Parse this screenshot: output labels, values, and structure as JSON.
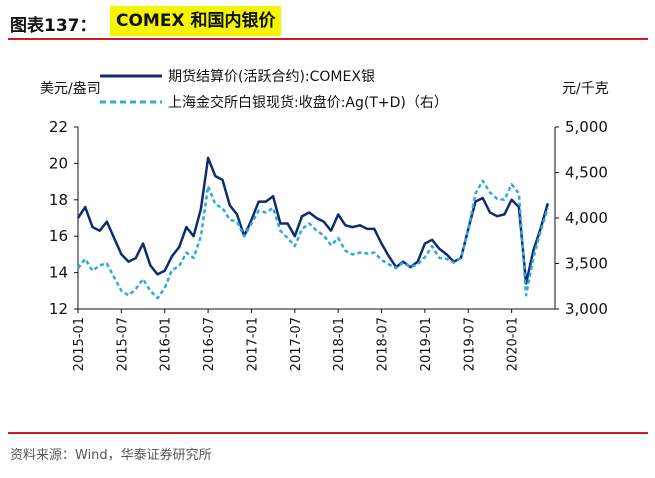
{
  "header": {
    "figure_label": "图表137：",
    "title": "COMEX 和国内银价"
  },
  "source": "资料来源：Wind，华泰证券研究所",
  "colors": {
    "series1": "#0d2d6e",
    "series2": "#2ea8e0",
    "rule": "#c81e1e",
    "highlight": "#f5f500"
  },
  "chart_data": {
    "type": "line",
    "left_unit": "美元/盎司",
    "right_unit": "元/千克",
    "yleft": {
      "lim": [
        12,
        22
      ],
      "ticks": [
        "12",
        "14",
        "16",
        "18",
        "20",
        "22"
      ]
    },
    "yright": {
      "lim": [
        3000,
        5000
      ],
      "ticks": [
        "3,000",
        "3,500",
        "4,000",
        "4,500",
        "5,000"
      ]
    },
    "xlim": [
      "2015-01",
      "2020-07"
    ],
    "xticks": [
      "2015-01",
      "2015-07",
      "2016-01",
      "2016-07",
      "2017-01",
      "2017-07",
      "2018-01",
      "2018-07",
      "2019-01",
      "2019-07",
      "2020-01"
    ],
    "series": [
      {
        "name": "期货结算价(活跃合约):COMEX银",
        "axis": "left",
        "style": "solid",
        "x": [
          "2015-01",
          "2015-02",
          "2015-03",
          "2015-04",
          "2015-05",
          "2015-06",
          "2015-07",
          "2015-08",
          "2015-09",
          "2015-10",
          "2015-11",
          "2015-12",
          "2016-01",
          "2016-02",
          "2016-03",
          "2016-04",
          "2016-05",
          "2016-06",
          "2016-07",
          "2016-08",
          "2016-09",
          "2016-10",
          "2016-11",
          "2016-12",
          "2017-01",
          "2017-02",
          "2017-03",
          "2017-04",
          "2017-05",
          "2017-06",
          "2017-07",
          "2017-08",
          "2017-09",
          "2017-10",
          "2017-11",
          "2017-12",
          "2018-01",
          "2018-02",
          "2018-03",
          "2018-04",
          "2018-05",
          "2018-06",
          "2018-07",
          "2018-08",
          "2018-09",
          "2018-10",
          "2018-11",
          "2018-12",
          "2019-01",
          "2019-02",
          "2019-03",
          "2019-04",
          "2019-05",
          "2019-06",
          "2019-07",
          "2019-08",
          "2019-09",
          "2019-10",
          "2019-11",
          "2019-12",
          "2020-01",
          "2020-02",
          "2020-03",
          "2020-04",
          "2020-05",
          "2020-06"
        ],
        "values": [
          17.0,
          17.6,
          16.5,
          16.3,
          16.8,
          15.9,
          15.0,
          14.6,
          14.8,
          15.6,
          14.4,
          13.9,
          14.1,
          14.9,
          15.4,
          16.5,
          16.0,
          17.5,
          20.3,
          19.3,
          19.1,
          17.7,
          17.2,
          16.0,
          16.9,
          17.9,
          17.9,
          18.2,
          16.7,
          16.7,
          16.0,
          17.1,
          17.3,
          17.0,
          16.8,
          16.3,
          17.2,
          16.6,
          16.5,
          16.6,
          16.4,
          16.4,
          15.6,
          14.9,
          14.3,
          14.6,
          14.3,
          14.6,
          15.6,
          15.8,
          15.3,
          15.0,
          14.6,
          14.8,
          16.4,
          17.9,
          18.1,
          17.3,
          17.1,
          17.2,
          18.0,
          17.6,
          13.4,
          15.2,
          16.4,
          17.8
        ]
      },
      {
        "name": "上海金交所白银现货:收盘价:Ag(T+D)（右）",
        "axis": "right",
        "style": "dashed",
        "x": [
          "2015-01",
          "2015-02",
          "2015-03",
          "2015-04",
          "2015-05",
          "2015-06",
          "2015-07",
          "2015-08",
          "2015-09",
          "2015-10",
          "2015-11",
          "2015-12",
          "2016-01",
          "2016-02",
          "2016-03",
          "2016-04",
          "2016-05",
          "2016-06",
          "2016-07",
          "2016-08",
          "2016-09",
          "2016-10",
          "2016-11",
          "2016-12",
          "2017-01",
          "2017-02",
          "2017-03",
          "2017-04",
          "2017-05",
          "2017-06",
          "2017-07",
          "2017-08",
          "2017-09",
          "2017-10",
          "2017-11",
          "2017-12",
          "2018-01",
          "2018-02",
          "2018-03",
          "2018-04",
          "2018-05",
          "2018-06",
          "2018-07",
          "2018-08",
          "2018-09",
          "2018-10",
          "2018-11",
          "2018-12",
          "2019-01",
          "2019-02",
          "2019-03",
          "2019-04",
          "2019-05",
          "2019-06",
          "2019-07",
          "2019-08",
          "2019-09",
          "2019-10",
          "2019-11",
          "2019-12",
          "2020-01",
          "2020-02",
          "2020-03",
          "2020-04",
          "2020-05",
          "2020-06"
        ],
        "values": [
          3450,
          3550,
          3420,
          3480,
          3500,
          3350,
          3200,
          3150,
          3220,
          3330,
          3200,
          3120,
          3230,
          3430,
          3470,
          3620,
          3560,
          3800,
          4350,
          4150,
          4110,
          3980,
          3960,
          3800,
          3940,
          4080,
          4060,
          4110,
          3860,
          3780,
          3690,
          3880,
          3940,
          3860,
          3810,
          3700,
          3780,
          3640,
          3600,
          3620,
          3610,
          3620,
          3540,
          3490,
          3450,
          3510,
          3460,
          3490,
          3570,
          3690,
          3560,
          3550,
          3510,
          3560,
          3870,
          4270,
          4410,
          4280,
          4210,
          4200,
          4370,
          4270,
          3150,
          3560,
          3850,
          4110
        ]
      }
    ],
    "grid": false,
    "legend_position": "top"
  }
}
